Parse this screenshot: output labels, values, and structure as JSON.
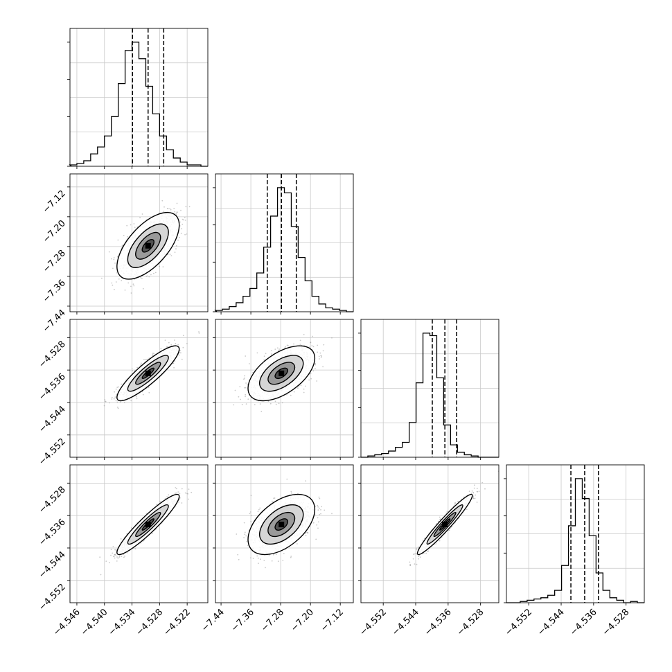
{
  "chart_data": {
    "type": "corner",
    "title": "",
    "grid": true,
    "parameters": [
      {
        "range": [
          -4.5475,
          -4.5175
        ],
        "ticks": [
          -4.546,
          -4.54,
          -4.534,
          -4.528,
          -4.522
        ],
        "tick_labels": [
          "−4.546",
          "−4.540",
          "−4.534",
          "−4.528",
          "−4.522"
        ],
        "median": -4.5305,
        "quantiles": [
          -4.5339,
          -4.5271
        ],
        "hist": [
          1,
          2,
          4,
          9,
          14,
          22,
          36,
          60,
          84,
          90,
          78,
          58,
          38,
          22,
          12,
          6,
          3,
          1,
          1,
          0
        ]
      },
      {
        "range": [
          -7.455,
          -7.085
        ],
        "ticks": [
          -7.44,
          -7.36,
          -7.28,
          -7.2,
          -7.12
        ],
        "tick_labels": [
          "−7.44",
          "−7.36",
          "−7.28",
          "−7.20",
          "−7.12"
        ],
        "median": -7.278,
        "quantiles": [
          -7.316,
          -7.238
        ],
        "hist": [
          1,
          2,
          4,
          7,
          12,
          18,
          30,
          50,
          74,
          96,
          92,
          66,
          42,
          24,
          12,
          6,
          3,
          2,
          1,
          0
        ]
      },
      {
        "range": [
          -4.5575,
          -4.5235
        ],
        "ticks": [
          -4.552,
          -4.544,
          -4.536,
          -4.528
        ],
        "tick_labels": [
          "−4.552",
          "−4.544",
          "−4.536",
          "−4.528"
        ],
        "median": -4.5368,
        "quantiles": [
          -4.5399,
          -4.5339
        ],
        "hist": [
          0,
          1,
          2,
          3,
          5,
          8,
          12,
          28,
          60,
          100,
          98,
          64,
          26,
          10,
          4,
          2,
          1,
          0,
          0,
          0
        ]
      },
      {
        "range": [
          -4.5575,
          -4.5235
        ],
        "ticks": [
          -4.552,
          -4.544,
          -4.536,
          -4.528
        ],
        "tick_labels": [
          "−4.552",
          "−4.544",
          "−4.536",
          "−4.528"
        ],
        "median": -4.5382,
        "quantiles": [
          -4.5416,
          -4.5348
        ],
        "hist": [
          0,
          0,
          1,
          2,
          3,
          4,
          6,
          10,
          30,
          62,
          100,
          84,
          54,
          24,
          10,
          4,
          2,
          0,
          1,
          0
        ]
      }
    ],
    "pairs": [
      {
        "row": 1,
        "col": 0,
        "mean": [
          -4.5305,
          -7.278
        ],
        "sd": [
          0.0031,
          0.041
        ],
        "rho": 0.62
      },
      {
        "row": 2,
        "col": 0,
        "mean": [
          -4.5305,
          -4.5368
        ],
        "sd": [
          0.0031,
          0.0031
        ],
        "rho": 0.88
      },
      {
        "row": 2,
        "col": 1,
        "mean": [
          -7.278,
          -4.5368
        ],
        "sd": [
          0.041,
          0.0031
        ],
        "rho": 0.55
      },
      {
        "row": 3,
        "col": 0,
        "mean": [
          -4.5305,
          -4.5382
        ],
        "sd": [
          0.0031,
          0.0034
        ],
        "rho": 0.93
      },
      {
        "row": 3,
        "col": 1,
        "mean": [
          -7.278,
          -4.5382
        ],
        "sd": [
          0.041,
          0.0034
        ],
        "rho": 0.5
      },
      {
        "row": 3,
        "col": 2,
        "mean": [
          -4.5368,
          -4.5382
        ],
        "sd": [
          0.0031,
          0.0034
        ],
        "rho": 0.96
      }
    ]
  }
}
